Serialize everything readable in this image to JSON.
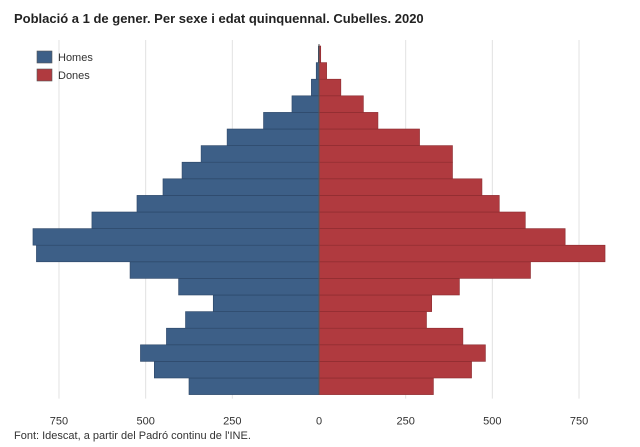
{
  "chart_data": {
    "type": "bar",
    "orientation": "horizontal",
    "layout": "population-pyramid",
    "title": "Població a 1 de gener. Per sexe i edat quinquennal. Cubelles. 2020",
    "source": "Font: Idescat, a partir del Padró continu de l'INE.",
    "age_groups_count": 21,
    "series": [
      {
        "name": "Homes",
        "color": "#3d5f87",
        "side": "left",
        "values": [
          375,
          475,
          515,
          440,
          385,
          305,
          405,
          545,
          815,
          825,
          655,
          525,
          450,
          395,
          340,
          265,
          160,
          78,
          22,
          8,
          2
        ]
      },
      {
        "name": "Dones",
        "color": "#b03a3f",
        "side": "right",
        "values": [
          330,
          440,
          480,
          415,
          310,
          325,
          405,
          610,
          825,
          710,
          595,
          520,
          470,
          385,
          385,
          290,
          170,
          128,
          63,
          22,
          5
        ]
      }
    ],
    "xaxis": {
      "ticks": [
        -750,
        -500,
        -250,
        0,
        250,
        500,
        750
      ],
      "tick_labels": [
        "750",
        "500",
        "250",
        "0",
        "250",
        "500",
        "750"
      ],
      "range": [
        -825,
        825
      ]
    },
    "grid": true,
    "legend_position": "top-left"
  }
}
